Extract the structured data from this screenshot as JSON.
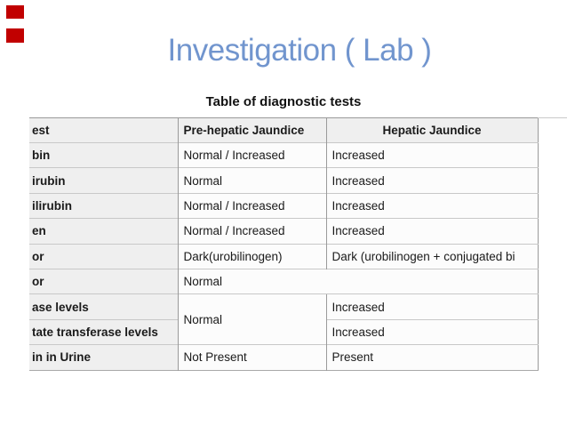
{
  "slide": {
    "title": "Investigation ( Lab )",
    "title_color": "#7195ce",
    "marker_color": "#c10000"
  },
  "table": {
    "caption": "Table of diagnostic tests",
    "headers": {
      "test": "est",
      "pre": "Pre-hepatic Jaundice",
      "hep": "Hepatic Jaundice"
    },
    "rows": [
      {
        "label": "bin",
        "pre": "Normal / Increased",
        "hep": "Increased"
      },
      {
        "label": "irubin",
        "pre": "Normal",
        "hep": "Increased"
      },
      {
        "label": "ilirubin",
        "pre": "Normal / Increased",
        "hep": "Increased"
      },
      {
        "label": "en",
        "pre": "Normal / Increased",
        "hep": "Increased"
      },
      {
        "label": "or",
        "pre": "Dark(urobilinogen)",
        "hep": "Dark (urobilinogen + conjugated bi"
      },
      {
        "label": "or",
        "span": "Normal"
      },
      {
        "label": "ase levels",
        "pre": "Normal",
        "hep": "Increased"
      },
      {
        "label": "tate transferase levels",
        "hep": "Increased"
      },
      {
        "label": "in in Urine",
        "pre": "Not Present",
        "hep": "Present"
      }
    ]
  }
}
